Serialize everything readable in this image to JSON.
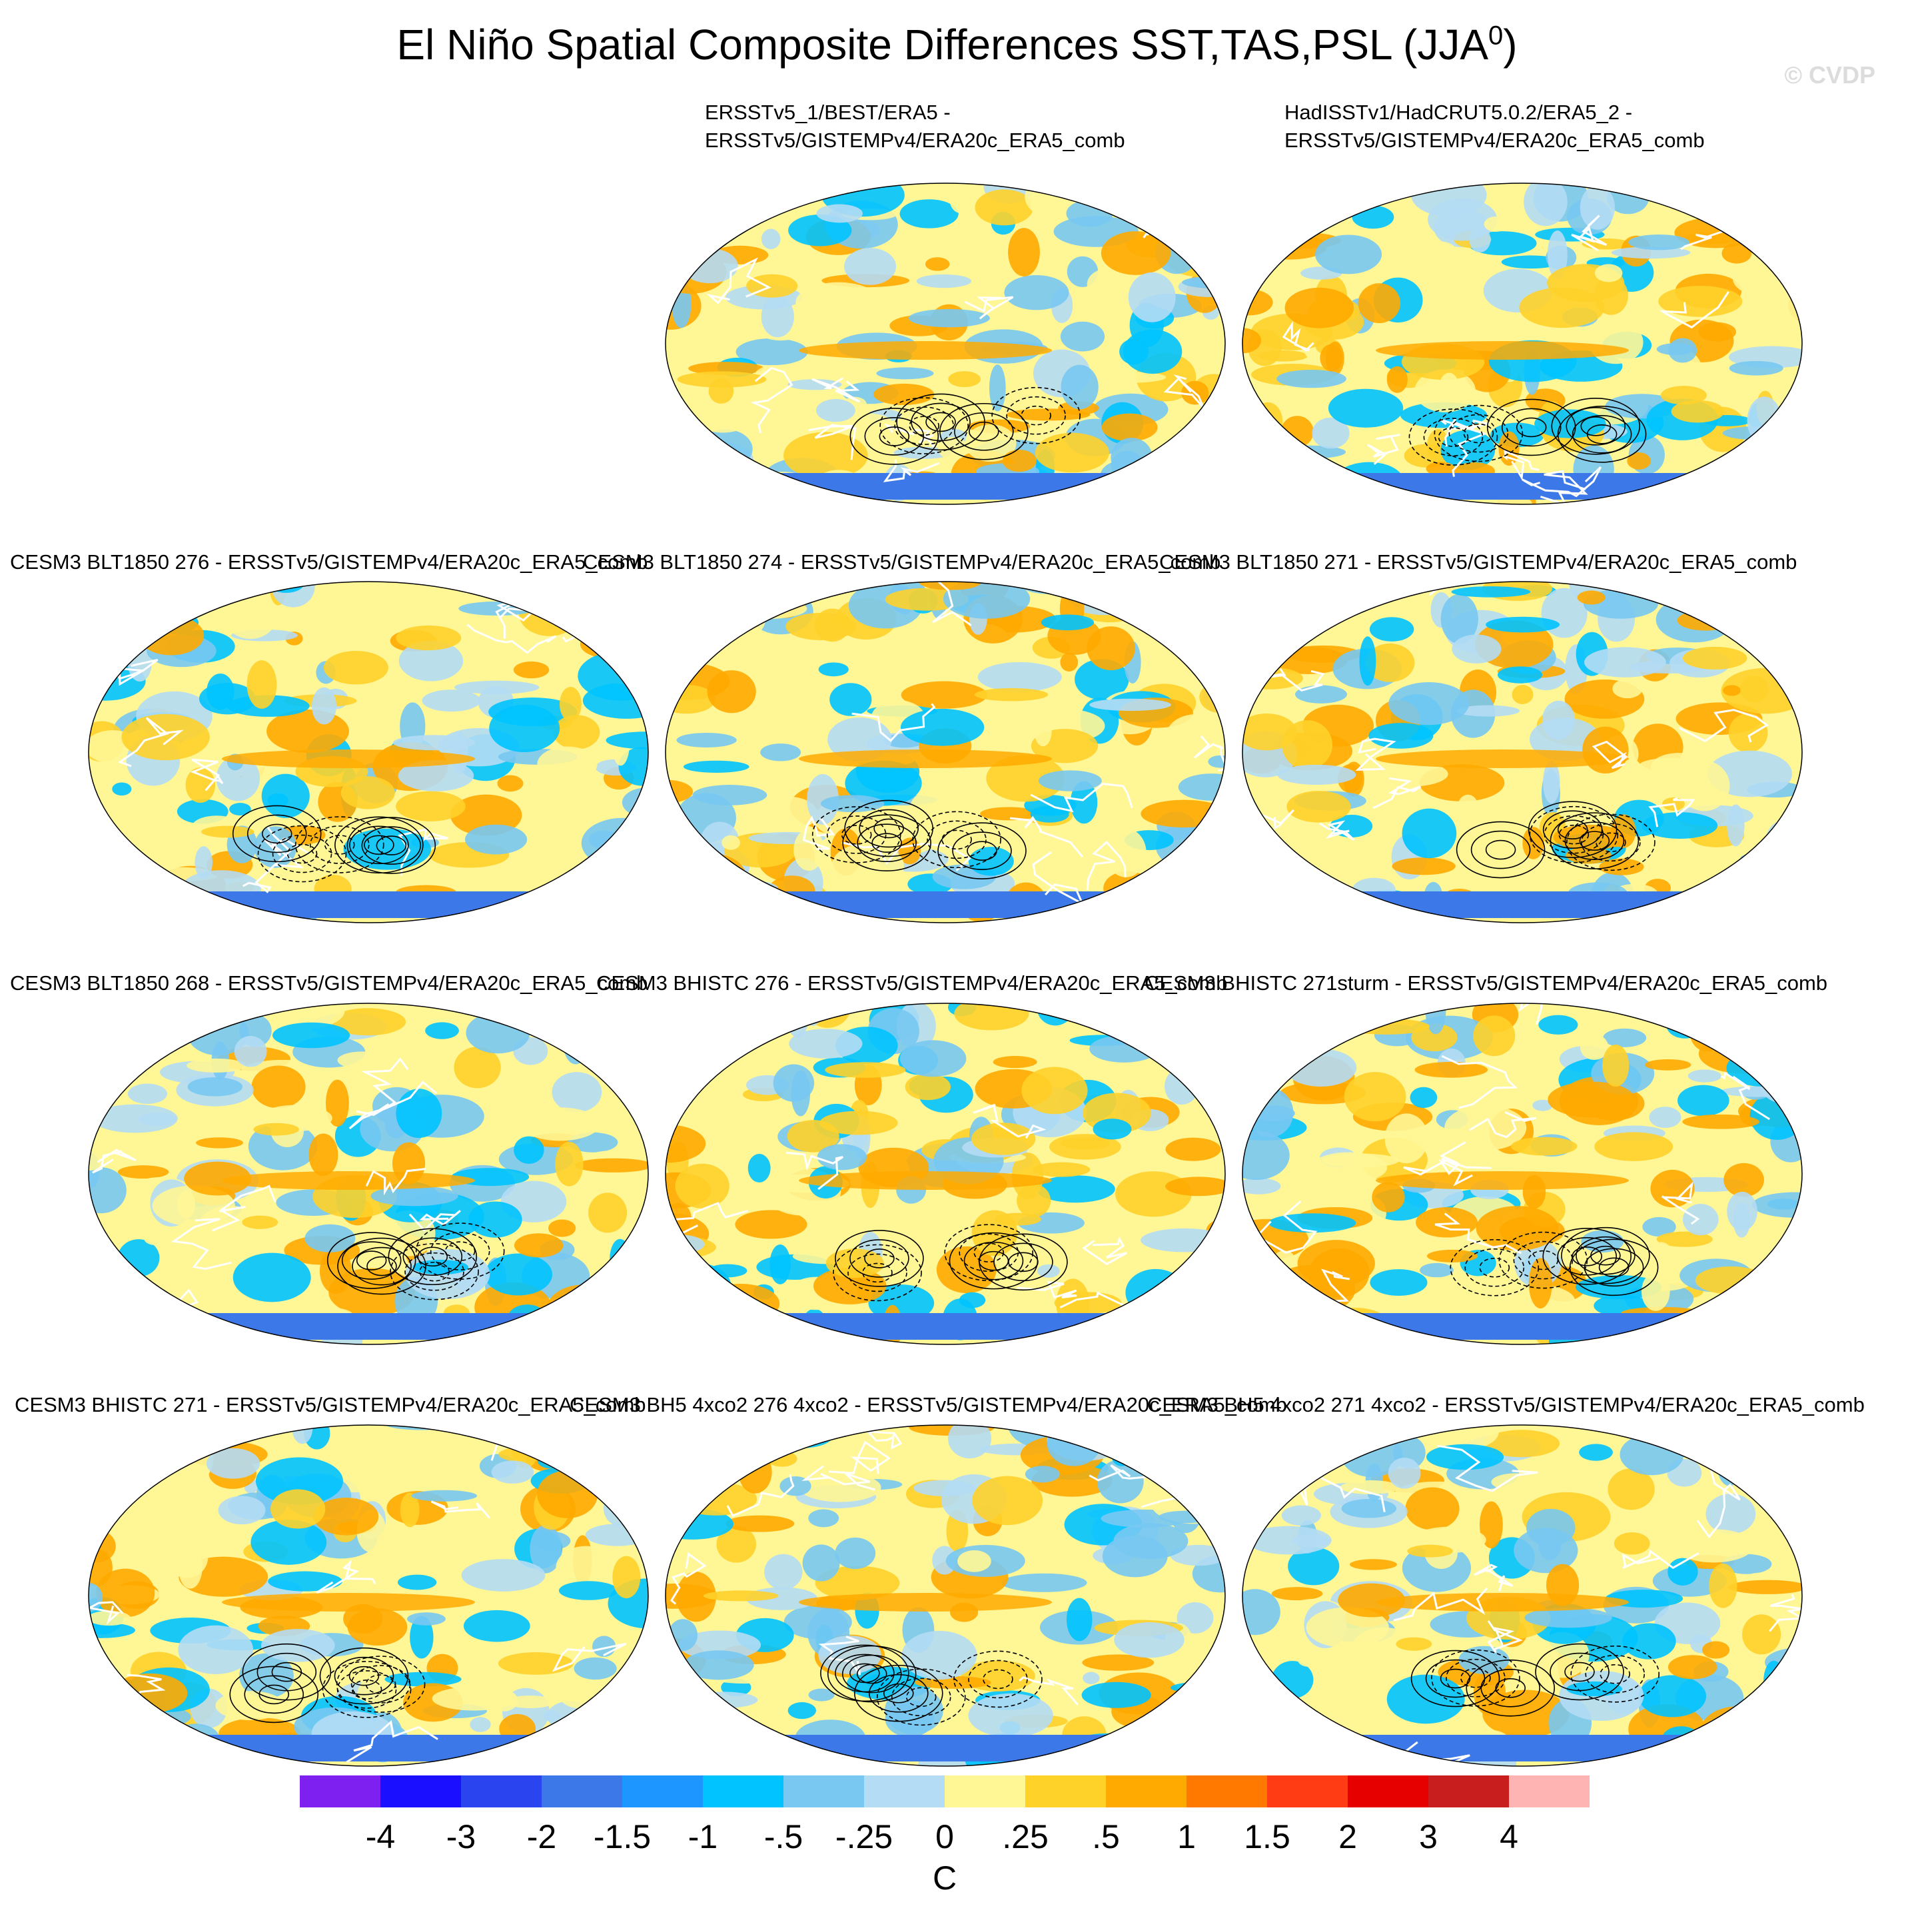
{
  "figure": {
    "title": "El Niño Spatial Composite Differences SST,TAS,PSL (JJA",
    "title_superscript": "0",
    "title_close": ")",
    "watermark": "© CVDP"
  },
  "panels": [
    {
      "title_line1": "ERSSTv5_1/BEST/ERA5 -",
      "title_line2": "ERSSTv5/GISTEMPv4/ERA20c_ERA5_comb"
    },
    {
      "title_line1": "HadISSTv1/HadCRUT5.0.2/ERA5_2 -",
      "title_line2": "ERSSTv5/GISTEMPv4/ERA20c_ERA5_comb"
    },
    {
      "title": "CESM3 BLT1850 276 - ERSSTv5/GISTEMPv4/ERA20c_ERA5_comb"
    },
    {
      "title": "CESM3 BLT1850 274 - ERSSTv5/GISTEMPv4/ERA20c_ERA5_comb"
    },
    {
      "title": "CESM3 BLT1850 271 - ERSSTv5/GISTEMPv4/ERA20c_ERA5_comb"
    },
    {
      "title": "CESM3 BLT1850 268 - ERSSTv5/GISTEMPv4/ERA20c_ERA5_comb"
    },
    {
      "title": "CESM3 BHISTC 276 - ERSSTv5/GISTEMPv4/ERA20c_ERA5_comb"
    },
    {
      "title": "CESM3 BHISTC 271sturm - ERSSTv5/GISTEMPv4/ERA20c_ERA5_comb"
    },
    {
      "title": "CESM3 BHISTC 271 - ERSSTv5/GISTEMPv4/ERA20c_ERA5_comb"
    },
    {
      "title": "CESM3 BH5 4xco2 276 4xco2 - ERSSTv5/GISTEMPv4/ERA20c_ERA5_comb"
    },
    {
      "title": "CESM3 BH5 4xco2 271 4xco2 - ERSSTv5/GISTEMPv4/ERA20c_ERA5_comb"
    }
  ],
  "colorbar": {
    "colors": [
      "#7e20f0",
      "#1a10ff",
      "#2a45f0",
      "#3c78e8",
      "#1e96ff",
      "#00c3ff",
      "#78c8f2",
      "#b4dcf4",
      "#fff696",
      "#ffd22a",
      "#ffaa00",
      "#ff7800",
      "#ff3c14",
      "#e60000",
      "#c81e1e",
      "#ffb4b4"
    ],
    "labels": [
      "-4",
      "-3",
      "-2",
      "-1.5",
      "-1",
      "-.5",
      "-.25",
      "0",
      ".25",
      ".5",
      "1",
      "1.5",
      "2",
      "3",
      "4"
    ],
    "units": "C"
  }
}
